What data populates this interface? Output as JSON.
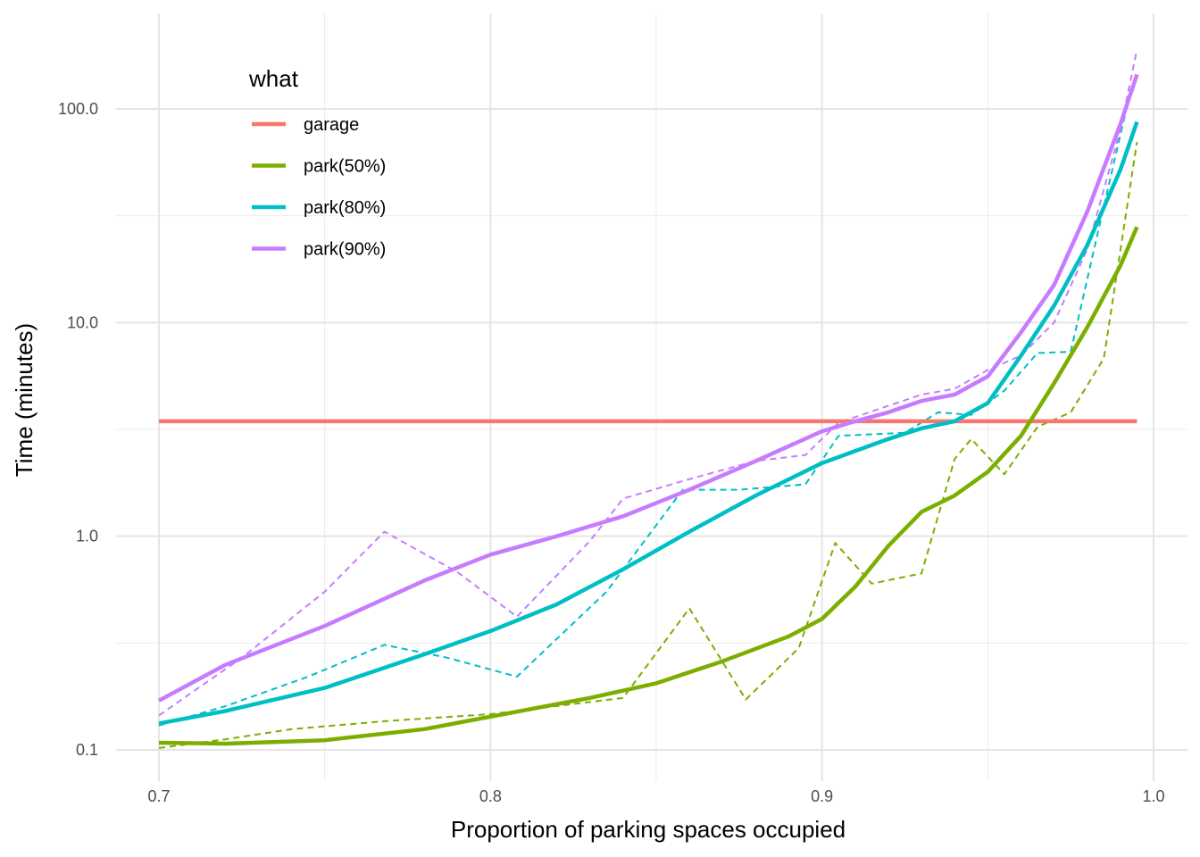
{
  "chart_data": {
    "type": "line",
    "xlabel": "Proportion of parking spaces occupied",
    "ylabel": "Time (minutes)",
    "xlim": [
      0.7,
      1.0
    ],
    "ylim": [
      0.08,
      200
    ],
    "yscale": "log10",
    "x_ticks": [
      0.7,
      0.8,
      0.9,
      1.0
    ],
    "x_tick_labels": [
      "0.7",
      "0.8",
      "0.9",
      "1.0"
    ],
    "x_minor_ticks": [
      0.75,
      0.85,
      0.95
    ],
    "y_ticks": [
      0.1,
      1,
      10,
      100
    ],
    "y_tick_labels": [
      "0.1",
      "1.0",
      "10.0",
      "100.0"
    ],
    "grid": true,
    "legend": {
      "title": "what",
      "placement": "top-left",
      "entries": [
        "garage",
        "park(50%)",
        "park(80%)",
        "park(90%)"
      ]
    },
    "series": [
      {
        "name": "garage",
        "color": "#F8766D",
        "style": "solid",
        "x": [
          0.7,
          0.995
        ],
        "y": [
          3.45,
          3.45
        ]
      },
      {
        "name": "park(50%)",
        "color": "#7CAE00",
        "style": "solid",
        "x": [
          0.7,
          0.72,
          0.75,
          0.78,
          0.8,
          0.83,
          0.85,
          0.87,
          0.89,
          0.9,
          0.91,
          0.92,
          0.93,
          0.94,
          0.95,
          0.96,
          0.97,
          0.98,
          0.99,
          0.995
        ],
        "y": [
          0.108,
          0.107,
          0.111,
          0.125,
          0.143,
          0.175,
          0.205,
          0.26,
          0.34,
          0.41,
          0.58,
          0.9,
          1.3,
          1.55,
          2.0,
          2.95,
          5.2,
          9.5,
          18.5,
          28.0
        ]
      },
      {
        "name": "park(50%)",
        "color": "#7CAE00",
        "style": "dashed",
        "x": [
          0.7,
          0.72,
          0.74,
          0.77,
          0.8,
          0.84,
          0.86,
          0.877,
          0.893,
          0.904,
          0.915,
          0.93,
          0.94,
          0.945,
          0.955,
          0.965,
          0.975,
          0.985,
          0.995
        ],
        "y": [
          0.102,
          0.112,
          0.125,
          0.137,
          0.147,
          0.175,
          0.46,
          0.172,
          0.3,
          0.93,
          0.6,
          0.67,
          2.3,
          2.85,
          1.95,
          3.25,
          3.8,
          6.8,
          70.0
        ]
      },
      {
        "name": "park(80%)",
        "color": "#00BFC4",
        "style": "solid",
        "x": [
          0.7,
          0.72,
          0.75,
          0.78,
          0.8,
          0.82,
          0.84,
          0.86,
          0.88,
          0.9,
          0.92,
          0.93,
          0.94,
          0.95,
          0.96,
          0.97,
          0.98,
          0.99,
          0.995
        ],
        "y": [
          0.133,
          0.152,
          0.195,
          0.28,
          0.36,
          0.48,
          0.7,
          1.05,
          1.55,
          2.2,
          2.85,
          3.2,
          3.45,
          4.2,
          7.0,
          12.0,
          23.0,
          52.0,
          87.0
        ]
      },
      {
        "name": "park(80%)",
        "color": "#00BFC4",
        "style": "dashed",
        "x": [
          0.7,
          0.72,
          0.745,
          0.768,
          0.787,
          0.808,
          0.835,
          0.858,
          0.875,
          0.895,
          0.905,
          0.925,
          0.935,
          0.945,
          0.955,
          0.965,
          0.975,
          0.985,
          0.993
        ],
        "y": [
          0.13,
          0.16,
          0.22,
          0.31,
          0.27,
          0.22,
          0.55,
          1.65,
          1.65,
          1.75,
          2.95,
          3.05,
          3.8,
          3.7,
          4.8,
          7.2,
          7.3,
          35.0,
          120.0
        ]
      },
      {
        "name": "park(90%)",
        "color": "#C77CFF",
        "style": "solid",
        "x": [
          0.7,
          0.72,
          0.75,
          0.78,
          0.8,
          0.82,
          0.84,
          0.86,
          0.88,
          0.9,
          0.91,
          0.92,
          0.93,
          0.94,
          0.95,
          0.96,
          0.97,
          0.98,
          0.99,
          0.995
        ],
        "y": [
          0.17,
          0.25,
          0.38,
          0.62,
          0.82,
          1.0,
          1.24,
          1.65,
          2.25,
          3.1,
          3.45,
          3.8,
          4.3,
          4.6,
          5.6,
          9.0,
          15.0,
          33.0,
          85.0,
          145.0
        ]
      },
      {
        "name": "park(90%)",
        "color": "#C77CFF",
        "style": "dashed",
        "x": [
          0.7,
          0.725,
          0.75,
          0.768,
          0.79,
          0.808,
          0.83,
          0.84,
          0.86,
          0.88,
          0.895,
          0.905,
          0.93,
          0.94,
          0.95,
          0.96,
          0.97,
          0.98,
          0.99,
          0.995
        ],
        "y": [
          0.145,
          0.27,
          0.55,
          1.05,
          0.68,
          0.42,
          0.95,
          1.5,
          1.85,
          2.25,
          2.4,
          3.4,
          4.6,
          4.9,
          6.0,
          7.0,
          10.0,
          22.0,
          80.0,
          190.0
        ]
      }
    ]
  }
}
